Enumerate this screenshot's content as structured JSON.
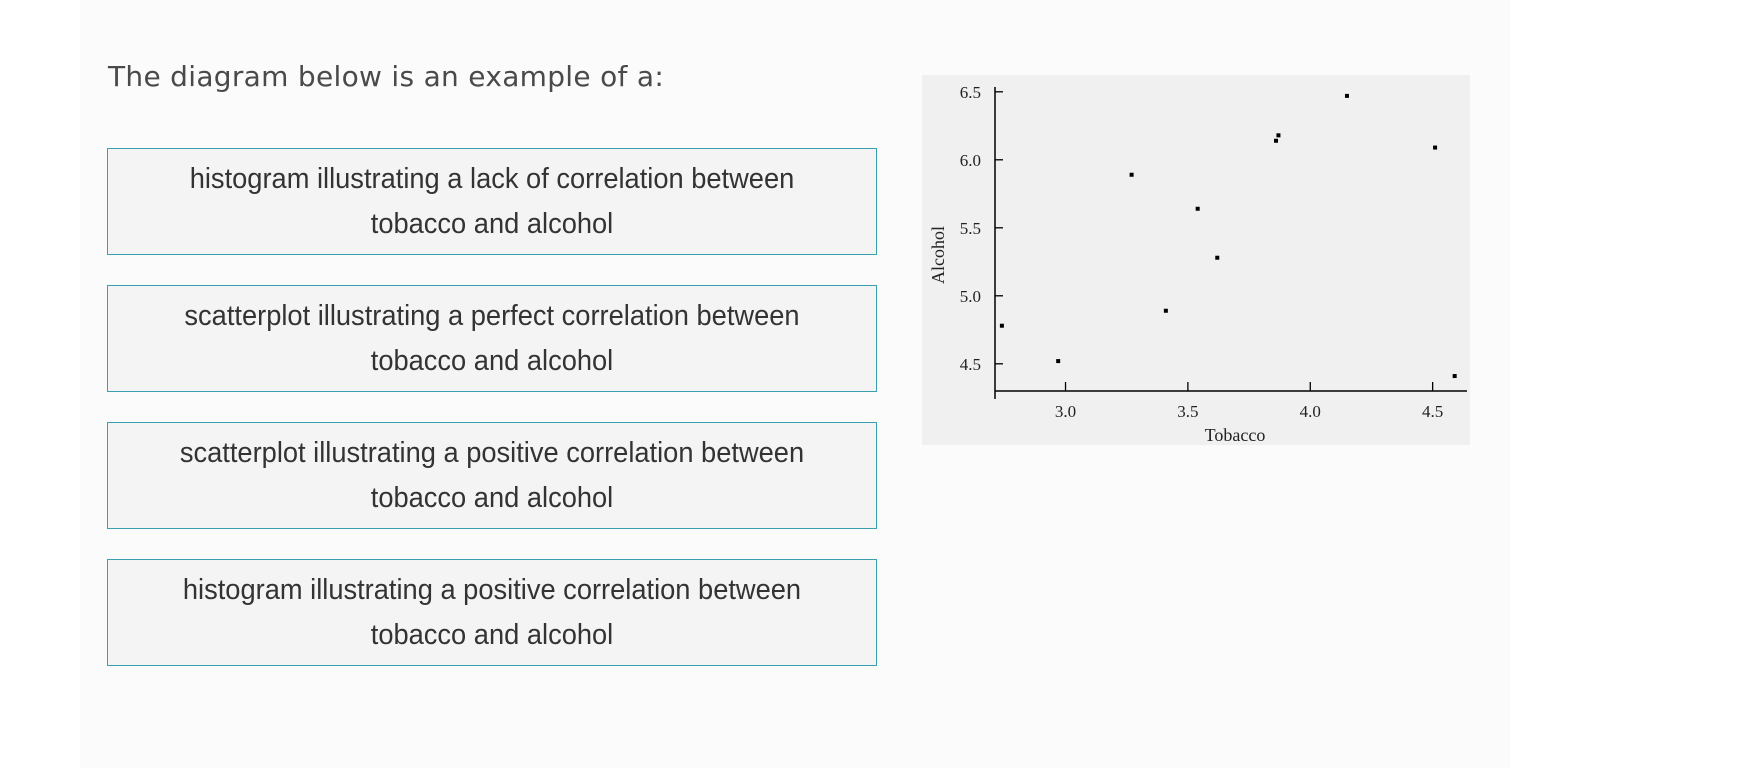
{
  "question": {
    "text": "The diagram below is an example of a:"
  },
  "options": [
    {
      "label": "histogram illustrating a lack of correlation between tobacco and alcohol"
    },
    {
      "label": "scatterplot illustrating a perfect correlation between tobacco and alcohol"
    },
    {
      "label": "scatterplot illustrating a positive correlation between tobacco and alcohol"
    },
    {
      "label": "histogram illustrating a positive correlation between tobacco and alcohol"
    }
  ],
  "colors": {
    "option_border": "#3a9fb0",
    "option_background": "#f4f4f4",
    "chart_background": "#f0f0f0"
  },
  "chart_data": {
    "type": "scatter",
    "title": "",
    "xlabel": "Tobacco",
    "ylabel": "Alcohol",
    "xlim": [
      2.72,
      4.62
    ],
    "ylim": [
      4.3,
      6.55
    ],
    "xticks": [
      3.0,
      3.5,
      4.0,
      4.5
    ],
    "xtick_labels": [
      "3.0",
      "3.5",
      "4.0",
      "4.5"
    ],
    "yticks": [
      4.5,
      5.0,
      5.5,
      6.0,
      6.5
    ],
    "ytick_labels": [
      "4.5",
      "5.0",
      "5.5",
      "6.0",
      "6.5"
    ],
    "grid": false,
    "legend": "none",
    "series": [
      {
        "x": [
          2.74,
          2.97,
          3.27,
          3.41,
          3.54,
          3.62,
          3.86,
          3.87,
          4.15,
          4.51,
          4.59
        ],
        "y": [
          4.78,
          4.52,
          5.89,
          4.89,
          5.64,
          5.28,
          6.14,
          6.18,
          6.47,
          6.09,
          4.41
        ]
      }
    ]
  }
}
